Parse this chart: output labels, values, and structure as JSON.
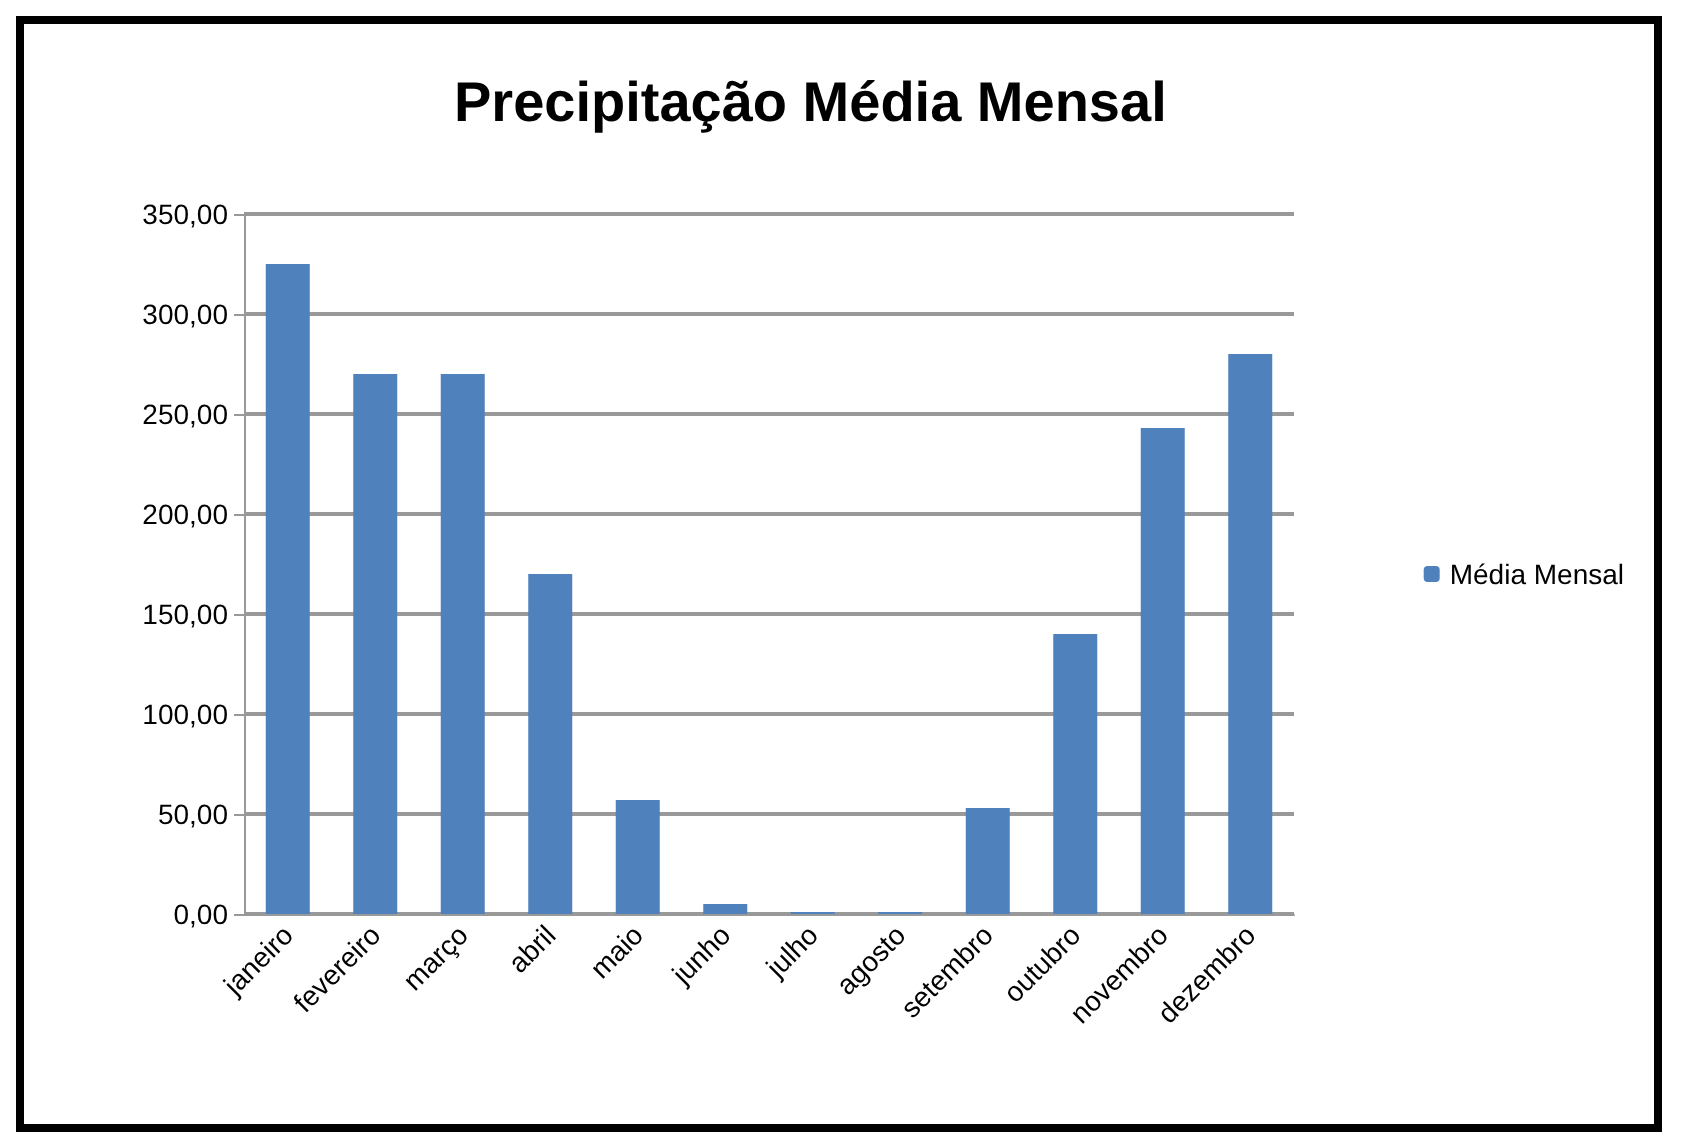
{
  "chart_data": {
    "type": "bar",
    "title": "Precipitação Média Mensal",
    "categories": [
      "janeiro",
      "fevereiro",
      "março",
      "abril",
      "maio",
      "junho",
      "julho",
      "agosto",
      "setembro",
      "outubro",
      "novembro",
      "dezembro"
    ],
    "series": [
      {
        "name": "Média Mensal",
        "color": "#4f81bd",
        "values": [
          325,
          270,
          270,
          170,
          57,
          5,
          1,
          1,
          53,
          140,
          243,
          280
        ]
      }
    ],
    "ylim": [
      0,
      350
    ],
    "yticks": [
      {
        "value": 0,
        "label": "0,00"
      },
      {
        "value": 50,
        "label": "50,00"
      },
      {
        "value": 100,
        "label": "100,00"
      },
      {
        "value": 150,
        "label": "150,00"
      },
      {
        "value": 200,
        "label": "200,00"
      },
      {
        "value": 250,
        "label": "250,00"
      },
      {
        "value": 300,
        "label": "300,00"
      },
      {
        "value": 350,
        "label": "350,00"
      }
    ],
    "grid": "y",
    "legend": "right"
  }
}
